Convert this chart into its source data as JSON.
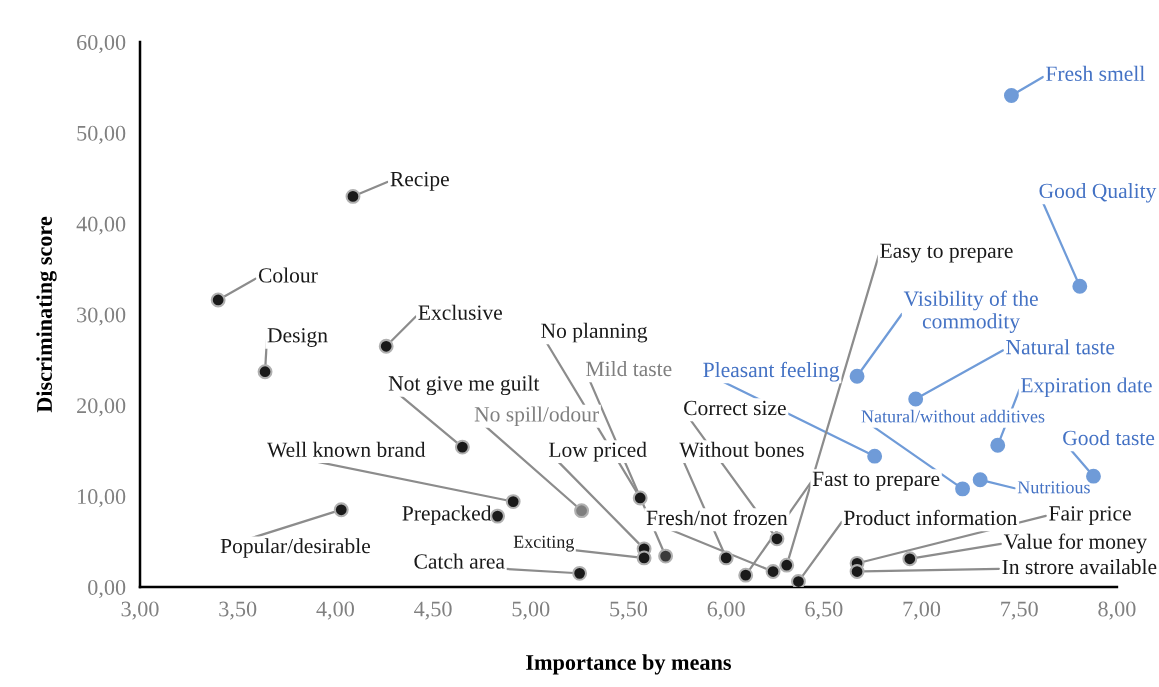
{
  "chart_data": {
    "type": "scatter",
    "xlabel": "Importance by means",
    "ylabel": "Discriminating score",
    "xlim": [
      3,
      8
    ],
    "ylim": [
      0,
      60
    ],
    "xticks": [
      {
        "value": 3,
        "label": "3,00"
      },
      {
        "value": 3.5,
        "label": "3,50"
      },
      {
        "value": 4,
        "label": "4,00"
      },
      {
        "value": 4.5,
        "label": "4,50"
      },
      {
        "value": 5,
        "label": "5,00"
      },
      {
        "value": 5.5,
        "label": "5,50"
      },
      {
        "value": 6,
        "label": "6,00"
      },
      {
        "value": 6.5,
        "label": "6,50"
      },
      {
        "value": 7,
        "label": "7,00"
      },
      {
        "value": 7.5,
        "label": "7,50"
      },
      {
        "value": 8,
        "label": "8,00"
      }
    ],
    "yticks": [
      {
        "value": 0,
        "label": "0,00"
      },
      {
        "value": 10,
        "label": "10,00"
      },
      {
        "value": 20,
        "label": "20,00"
      },
      {
        "value": 30,
        "label": "30,00"
      },
      {
        "value": 40,
        "label": "40,00"
      },
      {
        "value": 50,
        "label": "50,00"
      },
      {
        "value": 60,
        "label": "60,00"
      }
    ],
    "grid": false,
    "marker": "circle",
    "series": [
      {
        "x": [
          7.46,
          4.09,
          3.4,
          7.81,
          3.64,
          4.26,
          6.67,
          6.97,
          7.39,
          7.88,
          7.3,
          7.21,
          6.76,
          6.31,
          5.56,
          5.69,
          4.65,
          5.26,
          6.26,
          4.91,
          5.58,
          6.0,
          6.1,
          4.83,
          6.24,
          6.37,
          6.67,
          4.03,
          5.58,
          6.94,
          5.25,
          6.67
        ],
        "values": [
          54.1,
          43.0,
          31.6,
          33.1,
          23.7,
          26.5,
          23.2,
          20.7,
          15.6,
          12.2,
          11.8,
          10.8,
          14.4,
          2.4,
          9.8,
          3.4,
          15.4,
          8.4,
          5.3,
          9.4,
          4.2,
          3.2,
          1.3,
          7.8,
          1.7,
          0.6,
          2.6,
          8.5,
          3.2,
          3.1,
          1.5,
          1.7
        ],
        "colors": [
          "#6f9bd8",
          "#1a1a1a",
          "#1a1a1a",
          "#6f9bd8",
          "#1a1a1a",
          "#1a1a1a",
          "#6f9bd8",
          "#6f9bd8",
          "#6f9bd8",
          "#6f9bd8",
          "#6f9bd8",
          "#6f9bd8",
          "#6f9bd8",
          "#1a1a1a",
          "#1a1a1a",
          "#3a3a3a",
          "#1a1a1a",
          "#7f7f7f",
          "#1a1a1a",
          "#1a1a1a",
          "#1a1a1a",
          "#1a1a1a",
          "#1a1a1a",
          "#1a1a1a",
          "#1a1a1a",
          "#1a1a1a",
          "#1a1a1a",
          "#1a1a1a",
          "#1a1a1a",
          "#1a1a1a",
          "#1a1a1a",
          "#1a1a1a"
        ]
      }
    ],
    "annotations": [
      {
        "text": "Fresh smell",
        "x": 7.46,
        "y": 54.1
      },
      {
        "text": "Recipe",
        "x": 4.09,
        "y": 43.0
      },
      {
        "text": "Colour",
        "x": 3.4,
        "y": 31.6
      },
      {
        "text": "Good Quality",
        "x": 7.81,
        "y": 33.1
      },
      {
        "text": "Design",
        "x": 3.64,
        "y": 23.7
      },
      {
        "text": "Exclusive",
        "x": 4.26,
        "y": 26.5
      },
      {
        "text": "Visibility of the\ncommodity",
        "x": 6.67,
        "y": 23.2
      },
      {
        "text": "Natural taste",
        "x": 6.97,
        "y": 20.7
      },
      {
        "text": "Expiration date",
        "x": 7.39,
        "y": 15.6
      },
      {
        "text": "Good taste",
        "x": 7.88,
        "y": 12.2
      },
      {
        "text": "Nutritious",
        "x": 7.3,
        "y": 11.8
      },
      {
        "text": "Natural/without additives",
        "x": 7.21,
        "y": 10.8
      },
      {
        "text": "Pleasant feeling",
        "x": 6.76,
        "y": 14.4
      },
      {
        "text": "Easy to prepare",
        "x": 6.31,
        "y": 2.4
      },
      {
        "text": "No planning",
        "x": 5.56,
        "y": 9.8
      },
      {
        "text": "Mild taste",
        "x": 5.69,
        "y": 3.4
      },
      {
        "text": "Not give me guilt",
        "x": 4.65,
        "y": 15.4
      },
      {
        "text": "No spill/odour",
        "x": 5.26,
        "y": 8.4
      },
      {
        "text": "Correct size",
        "x": 6.26,
        "y": 5.3
      },
      {
        "text": "Well known brand",
        "x": 4.91,
        "y": 9.4
      },
      {
        "text": "Low priced",
        "x": 5.58,
        "y": 4.2
      },
      {
        "text": "Without bones",
        "x": 6.0,
        "y": 3.2
      },
      {
        "text": "Fast to prepare",
        "x": 6.1,
        "y": 1.3
      },
      {
        "text": "Prepacked",
        "x": 4.83,
        "y": 7.8
      },
      {
        "text": "Fresh/not frozen",
        "x": 6.24,
        "y": 1.7
      },
      {
        "text": "Product information",
        "x": 6.37,
        "y": 0.6
      },
      {
        "text": "Fair price",
        "x": 6.67,
        "y": 2.6
      },
      {
        "text": "Popular/desirable",
        "x": 4.03,
        "y": 8.5
      },
      {
        "text": "Exciting",
        "x": 5.58,
        "y": 3.2
      },
      {
        "text": "Value for money",
        "x": 6.94,
        "y": 3.1
      },
      {
        "text": "Catch area",
        "x": 5.25,
        "y": 1.5
      },
      {
        "text": "In strore available",
        "x": 6.67,
        "y": 1.7
      }
    ]
  }
}
